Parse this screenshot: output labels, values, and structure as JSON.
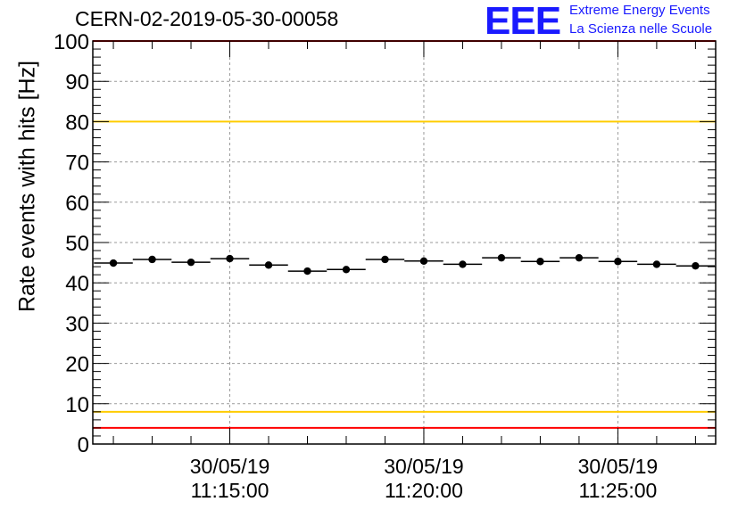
{
  "title": "CERN-02-2019-05-30-00058",
  "logo": {
    "mark": "EEE",
    "line1": "Extreme Energy Events",
    "line2": "La Scienza nelle Scuole",
    "color": "#1a1aff"
  },
  "chart_data": {
    "type": "scatter",
    "title": "CERN-02-2019-05-30-00058",
    "xlabel": "",
    "ylabel": "Rate events with hits [Hz]",
    "ylim": [
      0,
      100
    ],
    "yticks": [
      0,
      10,
      20,
      30,
      40,
      50,
      60,
      70,
      80,
      90,
      100
    ],
    "xlim_minutes": [
      11.47,
      27.52
    ],
    "xticks": [
      {
        "minute": 15,
        "line1": "30/05/19",
        "line2": "11:15:00"
      },
      {
        "minute": 20,
        "line1": "30/05/19",
        "line2": "11:20:00"
      },
      {
        "minute": 25,
        "line1": "30/05/19",
        "line2": "11:25:00"
      }
    ],
    "grid": true,
    "bin_width_minutes": 1,
    "series": [
      {
        "name": "rate",
        "x_minutes": [
          12.0,
          13.0,
          14.0,
          15.0,
          16.0,
          17.0,
          18.0,
          19.0,
          20.0,
          21.0,
          22.0,
          23.0,
          24.0,
          25.0,
          26.0,
          27.0
        ],
        "values": [
          44.9,
          45.8,
          45.1,
          46.0,
          44.4,
          42.9,
          43.3,
          45.8,
          45.4,
          44.6,
          46.2,
          45.3,
          46.2,
          45.3,
          44.6,
          44.2
        ]
      }
    ],
    "reference_lines": [
      {
        "value": 100,
        "color": "#ff0000"
      },
      {
        "value": 80,
        "color": "#ffcc00"
      },
      {
        "value": 8,
        "color": "#ffcc00"
      },
      {
        "value": 4,
        "color": "#ff0000"
      }
    ]
  }
}
